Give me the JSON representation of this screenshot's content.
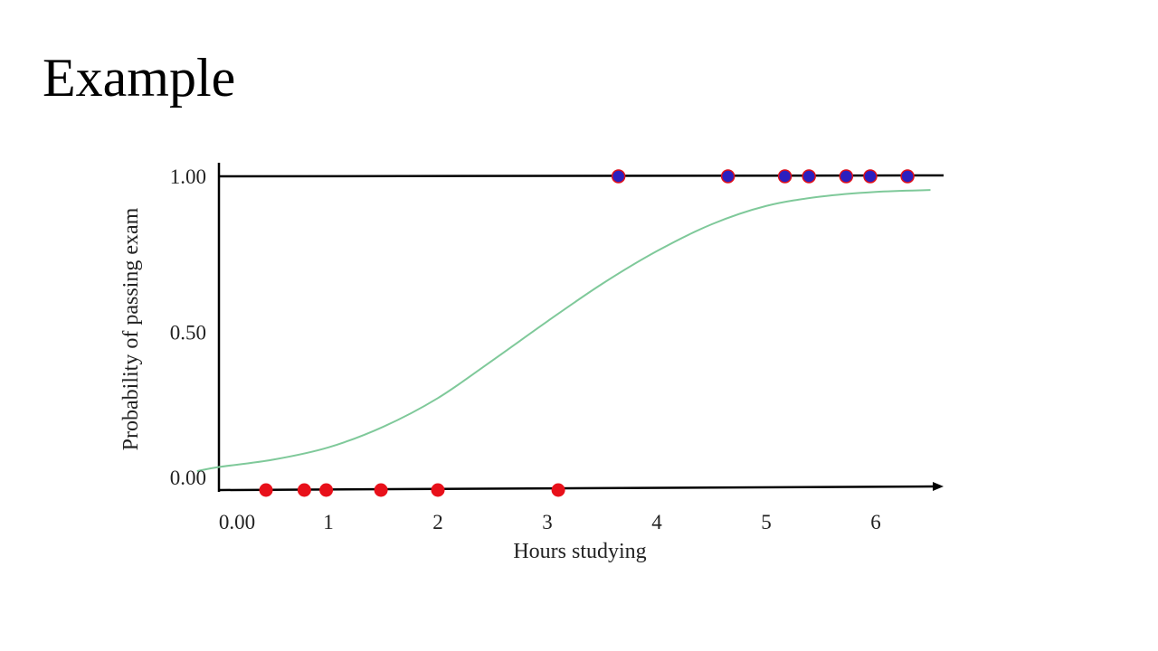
{
  "slide": {
    "title": "Example"
  },
  "colors": {
    "curve": "#7fc99a",
    "pass_point_fill": "#2b1fbf",
    "pass_point_stroke": "#e0101a",
    "fail_point_fill": "#e8101a",
    "axis": "#000000"
  },
  "chart_data": {
    "type": "scatter",
    "title": "",
    "xlabel": "Hours studying",
    "ylabel": "Probability of passing exam",
    "xlim": [
      0,
      6.5
    ],
    "ylim": [
      0,
      1
    ],
    "x_ticks": [
      {
        "value": 0,
        "label": "0.00"
      },
      {
        "value": 1,
        "label": "1"
      },
      {
        "value": 2,
        "label": "2"
      },
      {
        "value": 3,
        "label": "3"
      },
      {
        "value": 4,
        "label": "4"
      },
      {
        "value": 5,
        "label": "5"
      },
      {
        "value": 6,
        "label": "6"
      }
    ],
    "y_ticks": [
      {
        "value": 0,
        "label": "0.00"
      },
      {
        "value": 0.5,
        "label": "0.50"
      },
      {
        "value": 1,
        "label": "1.00"
      }
    ],
    "grid": false,
    "series": [
      {
        "kind": "points",
        "class": "fail",
        "x": [
          0.43,
          0.78,
          0.98,
          1.48,
          2.0,
          3.1
        ],
        "y": [
          0,
          0,
          0,
          0,
          0,
          0
        ]
      },
      {
        "kind": "points",
        "class": "pass",
        "x": [
          3.65,
          4.65,
          5.17,
          5.39,
          5.73,
          5.95,
          6.29
        ],
        "y": [
          1,
          1,
          1,
          1,
          1,
          1,
          1
        ]
      },
      {
        "kind": "curve",
        "class": "logistic",
        "x": [
          -0.2,
          0.0,
          0.5,
          1.0,
          1.5,
          2.0,
          2.5,
          3.0,
          3.5,
          4.0,
          4.5,
          5.0,
          5.5,
          6.0,
          6.5
        ],
        "y": [
          0.055,
          0.068,
          0.092,
          0.131,
          0.197,
          0.289,
          0.41,
          0.535,
          0.655,
          0.76,
          0.846,
          0.905,
          0.935,
          0.95,
          0.956
        ]
      }
    ]
  }
}
